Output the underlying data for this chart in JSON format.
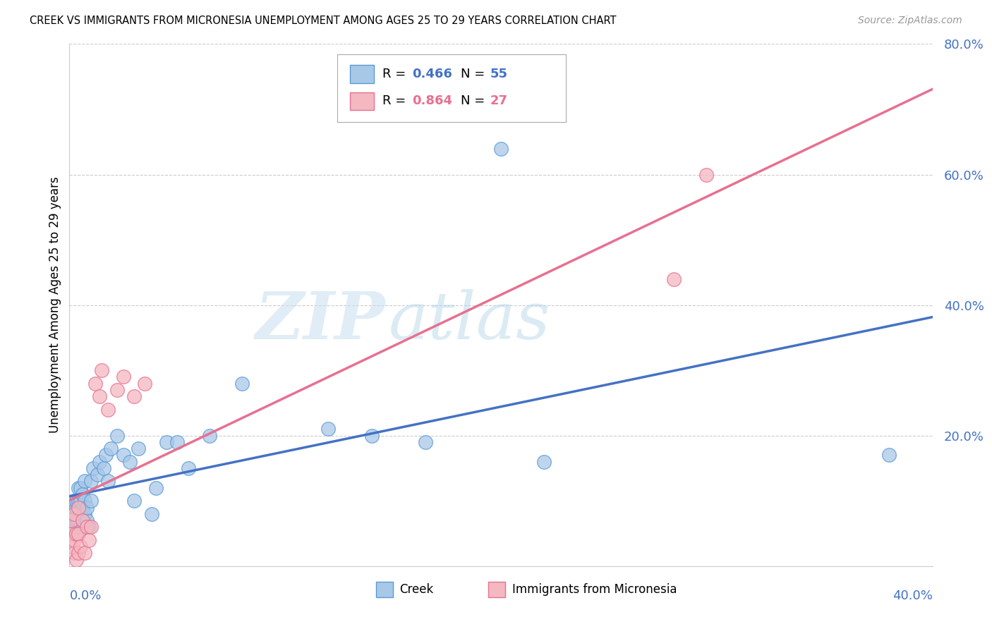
{
  "title": "CREEK VS IMMIGRANTS FROM MICRONESIA UNEMPLOYMENT AMONG AGES 25 TO 29 YEARS CORRELATION CHART",
  "source": "Source: ZipAtlas.com",
  "ylabel": "Unemployment Among Ages 25 to 29 years",
  "xlim": [
    0.0,
    0.4
  ],
  "ylim": [
    0.0,
    0.8
  ],
  "yticks": [
    0.0,
    0.2,
    0.4,
    0.6,
    0.8
  ],
  "ytick_labels": [
    "",
    "20.0%",
    "40.0%",
    "60.0%",
    "80.0%"
  ],
  "creek_color": "#a8c8e8",
  "creek_edge_color": "#5b9bd5",
  "micronesia_color": "#f4b8c1",
  "micronesia_edge_color": "#e87090",
  "creek_line_color": "#4472c4",
  "micronesia_line_color": "#e87090",
  "watermark_zip": "ZIP",
  "watermark_atlas": "atlas",
  "background_color": "#ffffff",
  "creek_x": [
    0.001,
    0.001,
    0.002,
    0.002,
    0.002,
    0.003,
    0.003,
    0.003,
    0.003,
    0.003,
    0.004,
    0.004,
    0.004,
    0.004,
    0.004,
    0.005,
    0.005,
    0.005,
    0.005,
    0.006,
    0.006,
    0.006,
    0.007,
    0.007,
    0.007,
    0.008,
    0.008,
    0.009,
    0.01,
    0.01,
    0.011,
    0.013,
    0.014,
    0.016,
    0.017,
    0.018,
    0.019,
    0.022,
    0.025,
    0.028,
    0.03,
    0.032,
    0.038,
    0.04,
    0.045,
    0.05,
    0.055,
    0.065,
    0.08,
    0.12,
    0.14,
    0.165,
    0.2,
    0.22,
    0.38
  ],
  "creek_y": [
    0.05,
    0.07,
    0.06,
    0.08,
    0.1,
    0.06,
    0.07,
    0.08,
    0.09,
    0.1,
    0.05,
    0.07,
    0.09,
    0.1,
    0.12,
    0.06,
    0.08,
    0.1,
    0.12,
    0.07,
    0.09,
    0.11,
    0.08,
    0.1,
    0.13,
    0.07,
    0.09,
    0.06,
    0.1,
    0.13,
    0.15,
    0.14,
    0.16,
    0.15,
    0.17,
    0.13,
    0.18,
    0.2,
    0.17,
    0.16,
    0.1,
    0.18,
    0.08,
    0.12,
    0.19,
    0.19,
    0.15,
    0.2,
    0.28,
    0.21,
    0.2,
    0.19,
    0.64,
    0.16,
    0.17
  ],
  "micronesia_x": [
    0.001,
    0.001,
    0.001,
    0.002,
    0.002,
    0.002,
    0.003,
    0.003,
    0.004,
    0.004,
    0.004,
    0.005,
    0.006,
    0.007,
    0.008,
    0.009,
    0.01,
    0.012,
    0.014,
    0.015,
    0.018,
    0.022,
    0.025,
    0.03,
    0.035,
    0.28,
    0.295
  ],
  "micronesia_y": [
    0.03,
    0.05,
    0.07,
    0.02,
    0.04,
    0.08,
    0.01,
    0.05,
    0.02,
    0.05,
    0.09,
    0.03,
    0.07,
    0.02,
    0.06,
    0.04,
    0.06,
    0.28,
    0.26,
    0.3,
    0.24,
    0.27,
    0.29,
    0.26,
    0.28,
    0.44,
    0.6
  ]
}
